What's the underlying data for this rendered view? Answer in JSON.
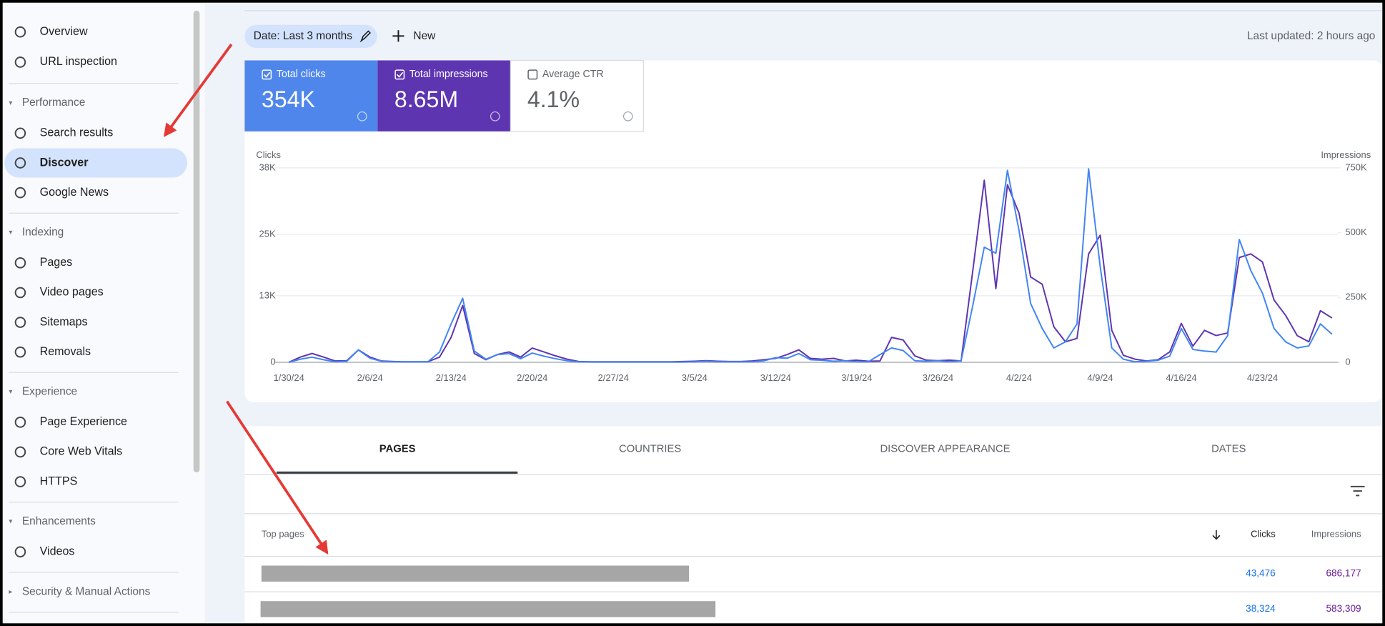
{
  "sidebar": {
    "top": [
      {
        "label": "Overview"
      },
      {
        "label": "URL inspection"
      }
    ],
    "sections": [
      {
        "title": "Performance",
        "items": [
          {
            "label": "Search results"
          },
          {
            "label": "Discover",
            "active": true
          },
          {
            "label": "Google News"
          }
        ]
      },
      {
        "title": "Indexing",
        "items": [
          {
            "label": "Pages"
          },
          {
            "label": "Video pages"
          },
          {
            "label": "Sitemaps"
          },
          {
            "label": "Removals"
          }
        ]
      },
      {
        "title": "Experience",
        "items": [
          {
            "label": "Page Experience"
          },
          {
            "label": "Core Web Vitals"
          },
          {
            "label": "HTTPS"
          }
        ]
      },
      {
        "title": "Enhancements",
        "items": [
          {
            "label": "Videos"
          }
        ]
      },
      {
        "title": "Security & Manual Actions",
        "collapsed": true
      }
    ]
  },
  "toolbar": {
    "date_filter": "Date: Last 3 months",
    "new_button": "New",
    "last_updated": "Last updated: 2 hours ago"
  },
  "metrics": [
    {
      "label": "Total clicks",
      "value": "354K",
      "color": "#4e86ec",
      "checked": true
    },
    {
      "label": "Total impressions",
      "value": "8.65M",
      "color": "#5e35b1",
      "checked": true
    },
    {
      "label": "Average CTR",
      "value": "4.1%",
      "color": "#ffffff",
      "checked": false
    }
  ],
  "chart_data": {
    "type": "line",
    "ylabel": "Clicks",
    "y2label": "Impressions",
    "categories": [
      "1/30/24",
      null,
      null,
      null,
      null,
      null,
      null,
      "2/6/24",
      null,
      null,
      null,
      null,
      null,
      null,
      "2/13/24",
      null,
      null,
      null,
      null,
      null,
      null,
      "2/20/24",
      null,
      null,
      null,
      null,
      null,
      null,
      "2/27/24",
      null,
      null,
      null,
      null,
      null,
      null,
      "3/5/24",
      null,
      null,
      null,
      null,
      null,
      null,
      "3/12/24",
      null,
      null,
      null,
      null,
      null,
      null,
      "3/19/24",
      null,
      null,
      null,
      null,
      null,
      null,
      "3/26/24",
      null,
      null,
      null,
      null,
      null,
      null,
      "4/2/24",
      null,
      null,
      null,
      null,
      null,
      null,
      "4/9/24",
      null,
      null,
      null,
      null,
      null,
      null,
      "4/16/24",
      null,
      null,
      null,
      null,
      null,
      null,
      "4/23/24",
      null,
      null,
      null,
      null,
      null,
      null
    ],
    "series": [
      {
        "color": "#4285f4",
        "values": [
          0,
          600,
          1000,
          500,
          100,
          200,
          2400,
          800,
          200,
          100,
          100,
          100,
          100,
          2000,
          7500,
          12500,
          2200,
          600,
          1500,
          1700,
          700,
          1800,
          1200,
          700,
          300,
          100,
          50,
          50,
          50,
          50,
          50,
          50,
          50,
          50,
          50,
          100,
          200,
          100,
          100,
          100,
          100,
          300,
          900,
          800,
          1700,
          500,
          400,
          200,
          300,
          100,
          100,
          1500,
          2800,
          2300,
          300,
          200,
          300,
          100,
          300,
          11000,
          22500,
          21300,
          37500,
          25700,
          11500,
          6600,
          2800,
          4000,
          7500,
          37800,
          18700,
          2800,
          600,
          100,
          200,
          400,
          1200,
          6600,
          2500,
          2200,
          2000,
          5200,
          24000,
          17900,
          13500,
          6600,
          4000,
          2800,
          3200,
          7500,
          5500
        ]
      },
      {
        "color": "#5e35b1",
        "axis": "y2",
        "values": [
          0,
          20000,
          34000,
          20000,
          5000,
          6000,
          48000,
          20000,
          5000,
          3000,
          2000,
          2000,
          2000,
          20000,
          96000,
          219000,
          34000,
          10000,
          30000,
          40000,
          20000,
          55000,
          40000,
          25000,
          12000,
          3000,
          2000,
          2000,
          2000,
          2000,
          2000,
          2000,
          2000,
          2000,
          3000,
          4000,
          6000,
          4000,
          3000,
          3000,
          5000,
          10000,
          15000,
          30000,
          48000,
          15000,
          12000,
          15000,
          5000,
          8000,
          4000,
          5000,
          96000,
          86000,
          25000,
          8000,
          6000,
          8000,
          5000,
          350000,
          702000,
          284000,
          685000,
          575000,
          329000,
          301000,
          137000,
          79000,
          92000,
          418000,
          490000,
          123000,
          27000,
          12000,
          5000,
          10000,
          40000,
          150000,
          62000,
          123000,
          103000,
          113000,
          404000,
          418000,
          387000,
          240000,
          181000,
          103000,
          79000,
          199000,
          171000
        ]
      }
    ],
    "ylim": [
      0,
      38000
    ],
    "yticks": [
      0,
      {
        "value": 13000,
        "label": "13K"
      },
      {
        "value": 25000,
        "label": "25K"
      },
      {
        "value": 38000,
        "label": "38K"
      }
    ],
    "y2lim": [
      0,
      750000
    ],
    "y2ticks": [
      0,
      {
        "value": 250000,
        "label": "250K"
      },
      {
        "value": 500000,
        "label": "500K"
      },
      {
        "value": 750000,
        "label": "750K"
      }
    ],
    "grid": true
  },
  "tabs": [
    {
      "label": "PAGES",
      "active": true
    },
    {
      "label": "COUNTRIES"
    },
    {
      "label": "DISCOVER APPEARANCE"
    },
    {
      "label": "DATES"
    }
  ],
  "table": {
    "header": {
      "title": "Top pages",
      "clicks": "Clicks",
      "impressions": "Impressions"
    },
    "rows": [
      {
        "clicks": "43,476",
        "impressions": "686,177"
      },
      {
        "clicks": "38,324",
        "impressions": "583,309"
      }
    ]
  }
}
